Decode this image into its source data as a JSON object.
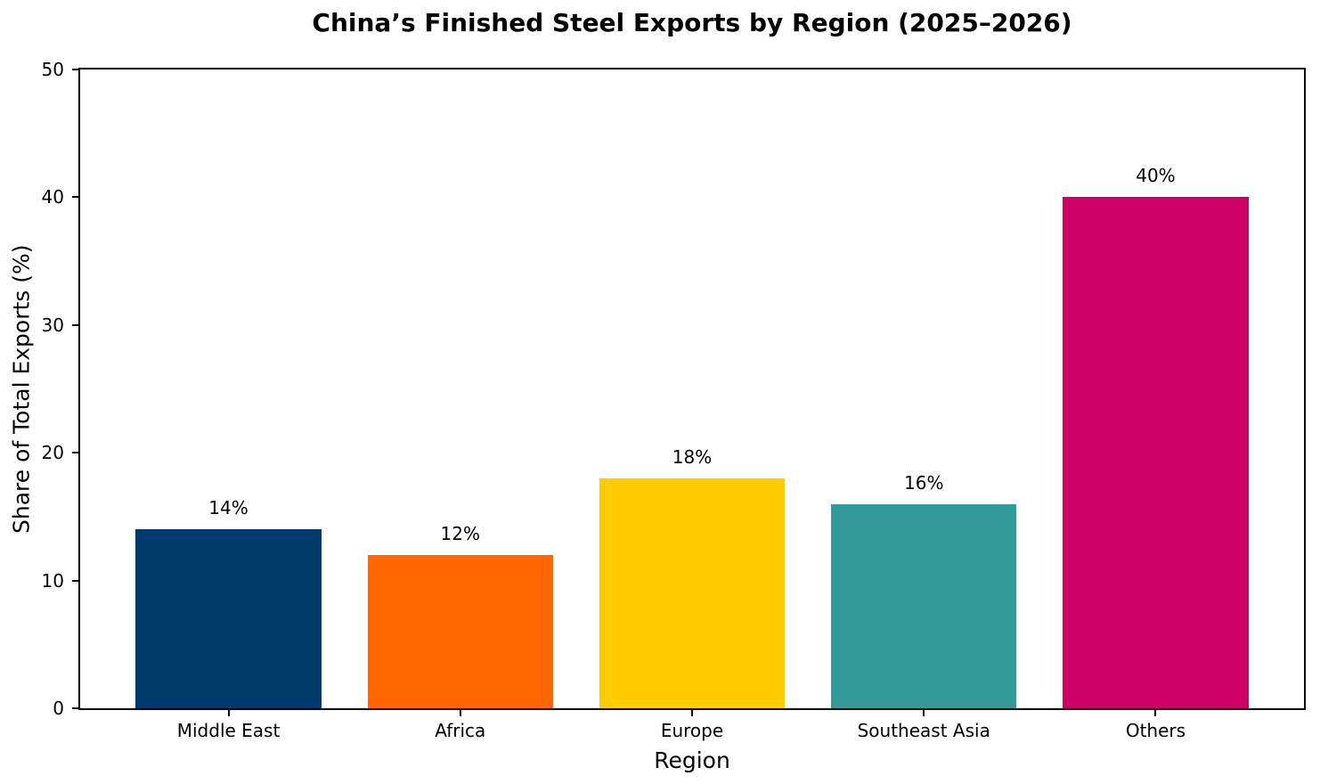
{
  "chart_data": {
    "type": "bar",
    "title": "China’s Finished Steel Exports by Region (2025–2026)",
    "xlabel": "Region",
    "ylabel": "Share of Total Exports (%)",
    "categories": [
      "Middle East",
      "Africa",
      "Europe",
      "Southeast Asia",
      "Others"
    ],
    "values": [
      14,
      12,
      18,
      16,
      40
    ],
    "value_labels": [
      "14%",
      "12%",
      "18%",
      "16%",
      "40%"
    ],
    "bar_colors": [
      "#003A6B",
      "#FF6600",
      "#FFCC00",
      "#339999",
      "#CC0066"
    ],
    "ylim": [
      0,
      50
    ],
    "yticks": [
      0,
      10,
      20,
      30,
      40,
      50
    ],
    "grid": false,
    "legend": "none",
    "frame": "full-box",
    "text_color": "#000000",
    "axis_color": "#000000",
    "background_color": "#ffffff"
  }
}
